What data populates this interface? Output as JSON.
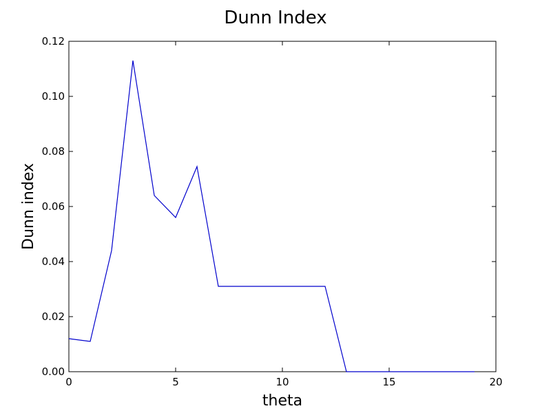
{
  "chart_data": {
    "type": "line",
    "title": "Dunn Index",
    "xlabel": "theta",
    "ylabel": "Dunn index",
    "xlim": [
      0,
      20
    ],
    "ylim": [
      0,
      0.12
    ],
    "x_ticks": [
      0,
      5,
      10,
      15,
      20
    ],
    "y_ticks": [
      0.0,
      0.02,
      0.04,
      0.06,
      0.08,
      0.1,
      0.12
    ],
    "x_tick_labels": [
      "0",
      "5",
      "10",
      "15",
      "20"
    ],
    "y_tick_labels": [
      "0.00",
      "0.02",
      "0.04",
      "0.06",
      "0.08",
      "0.10",
      "0.12"
    ],
    "grid": false,
    "series": [
      {
        "color": "#0000cc",
        "x": [
          0,
          1,
          2,
          3,
          4,
          5,
          6,
          7,
          8,
          9,
          10,
          11,
          12,
          13,
          14,
          15,
          16,
          17,
          18,
          19
        ],
        "y": [
          0.012,
          0.011,
          0.044,
          0.113,
          0.064,
          0.056,
          0.0745,
          0.031,
          0.031,
          0.031,
          0.031,
          0.031,
          0.031,
          0.0,
          0.0,
          0.0,
          0.0,
          0.0,
          0.0,
          0.0
        ]
      }
    ]
  }
}
